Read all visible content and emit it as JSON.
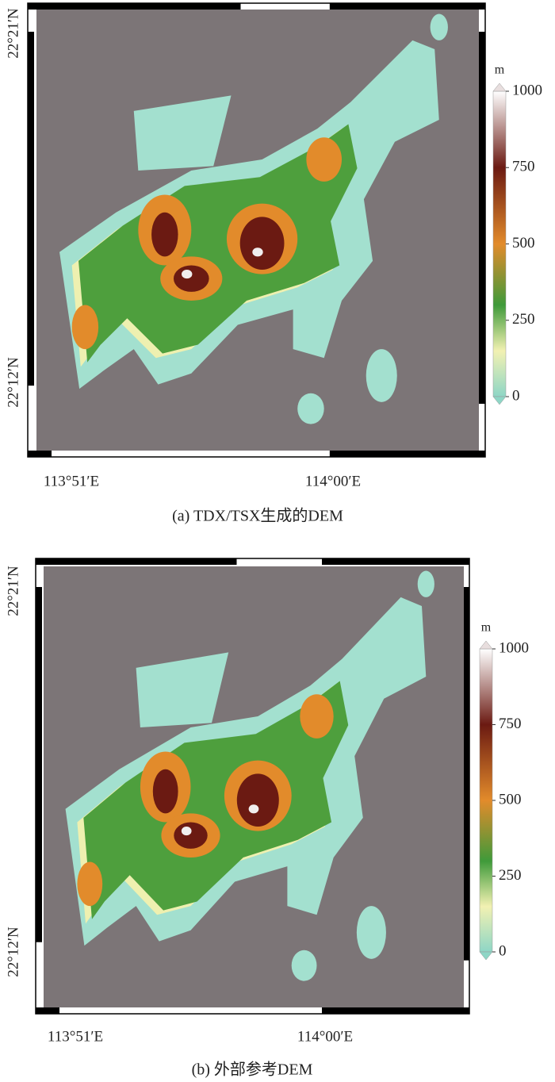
{
  "panels": [
    {
      "caption": "(a) TDX/TSX生成的DEM",
      "lat_labels": [
        "22°21′N",
        "22°12′N"
      ],
      "lon_labels": [
        "113°51′E",
        "114°00′E"
      ],
      "colorbar": {
        "unit": "m",
        "ticks": [
          0,
          250,
          500,
          750,
          1000
        ]
      }
    },
    {
      "caption": "(b) 外部参考DEM",
      "lat_labels": [
        "22°21′N",
        "22°12′N"
      ],
      "lon_labels": [
        "113°51′E",
        "114°00′E"
      ],
      "colorbar": {
        "unit": "m",
        "ticks": [
          0,
          250,
          500,
          750,
          1000
        ]
      }
    }
  ]
}
